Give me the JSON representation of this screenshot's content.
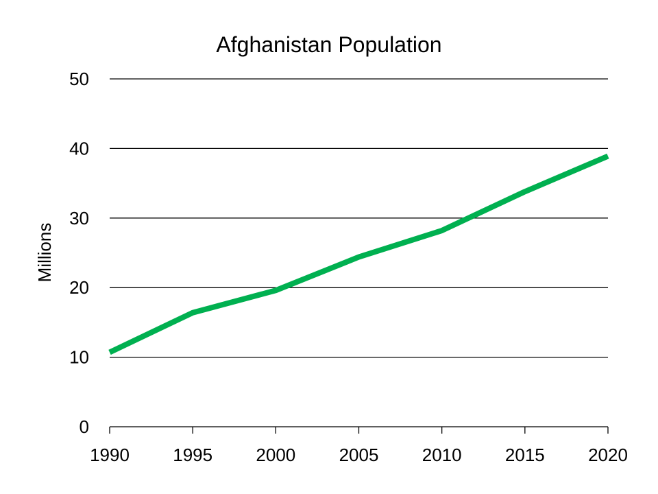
{
  "chart_data": {
    "type": "line",
    "title": "Afghanistan Population",
    "xlabel": "",
    "ylabel": "Millions",
    "x": [
      1990,
      1995,
      2000,
      2005,
      2010,
      2015,
      2020
    ],
    "xlim": [
      1990,
      2020
    ],
    "ylim": [
      0,
      50
    ],
    "y_ticks": [
      0,
      10,
      20,
      30,
      40,
      50
    ],
    "x_ticks": [
      1990,
      1995,
      2000,
      2005,
      2010,
      2015,
      2020
    ],
    "grid": "horizontal",
    "legend": "none",
    "series": [
      {
        "values": [
          10.7,
          16.4,
          19.6,
          24.4,
          28.2,
          33.8,
          38.9
        ],
        "color": "#00b050"
      }
    ]
  }
}
